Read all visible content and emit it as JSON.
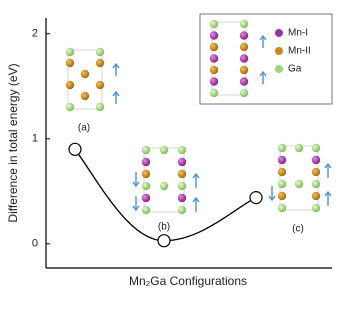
{
  "chart_data": {
    "type": "line",
    "y_label": "Difference in total energy (eV)",
    "x_label": "Mn₂Ga Configurations",
    "categories": [
      "(a)",
      "(b)",
      "(c)"
    ],
    "values": [
      0.9,
      0.03,
      0.44
    ],
    "ylim": [
      -0.23,
      2.15
    ],
    "yticks": [
      0,
      1,
      2
    ],
    "line_color": "#000000",
    "legend": [
      {
        "label": "Mn-I",
        "color": "#a0309f"
      },
      {
        "label": "Mn-II",
        "color": "#c98a12"
      },
      {
        "label": "Ga",
        "color": "#9fd47c"
      }
    ],
    "legend_position": "upper right"
  }
}
